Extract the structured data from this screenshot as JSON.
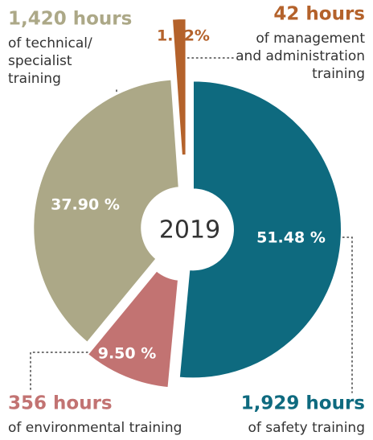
{
  "chart_data": {
    "type": "donut",
    "center_label": "2019",
    "categories": [
      "safety",
      "environmental",
      "technical/specialist",
      "management and administration"
    ],
    "values": [
      51.48,
      9.5,
      37.9,
      1.12
    ],
    "value_labels": [
      "51.48 %",
      "9.50 %",
      "37.90 %",
      "1.12%"
    ],
    "colors": [
      "#0e6a7f",
      "#c27372",
      "#aca887",
      "#b4622b"
    ],
    "annotations": [
      {
        "heading": "1,929 hours",
        "lines": [
          "of safety training"
        ]
      },
      {
        "heading": "356 hours",
        "lines": [
          "of environmental training"
        ]
      },
      {
        "heading": "1,420 hours",
        "lines": [
          "of technical/",
          "specialist",
          "training"
        ]
      },
      {
        "heading": "42 hours",
        "lines": [
          "of management",
          "and administration",
          "training"
        ]
      }
    ]
  }
}
